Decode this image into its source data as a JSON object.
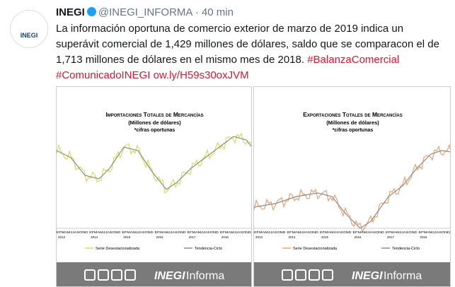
{
  "tweet": {
    "author": "INEGI",
    "handle": "@INEGI_INFORMA",
    "separator": "·",
    "time": "40 min",
    "lines": [
      [
        {
          "text": "La información oportuna de comercio exterior de marzo de 2019 indica un"
        }
      ],
      [
        {
          "text": "superávit comercial de 1,429 millones de dólares, saldo que se comparacon el de"
        }
      ],
      [
        {
          "text": "1,713 millones de dólares en el mismo mes de 2018. "
        },
        {
          "text": "#BalanzaComercial",
          "link": true
        }
      ],
      [
        {
          "text": "#ComunicadoINEGI",
          "link": true
        },
        {
          "text": " "
        },
        {
          "text": "ow.ly/H59s30oxJVM",
          "link": true
        }
      ]
    ],
    "avatar_label": "INEGI"
  },
  "images": [
    {
      "title": "Importaciones Totales de Mercancías",
      "subtitle": "(Millones de dólares)",
      "note": "*cifras oportunas",
      "months": "EFMAMJJASOND",
      "years": [
        "2013",
        "2014",
        "2015",
        "2016",
        "2017",
        "2018"
      ],
      "legend": [
        "Serie Desestacionalizada",
        "Tendencia-Ciclo"
      ],
      "brand": "INEGI",
      "brand_word": "Informa"
    },
    {
      "title": "Exportaciones Totales de Mercancías",
      "subtitle": "(Millones de dólares)",
      "note": "*cifras oportunas",
      "months": "EFMAMJJASOND",
      "years": [
        "2013",
        "2014",
        "2015",
        "2016",
        "2017",
        "2018"
      ],
      "legend": [
        "Serie Desestacionalizada",
        "Tendencia-Ciclo"
      ],
      "brand": "INEGI",
      "brand_word": "Informa"
    }
  ]
}
